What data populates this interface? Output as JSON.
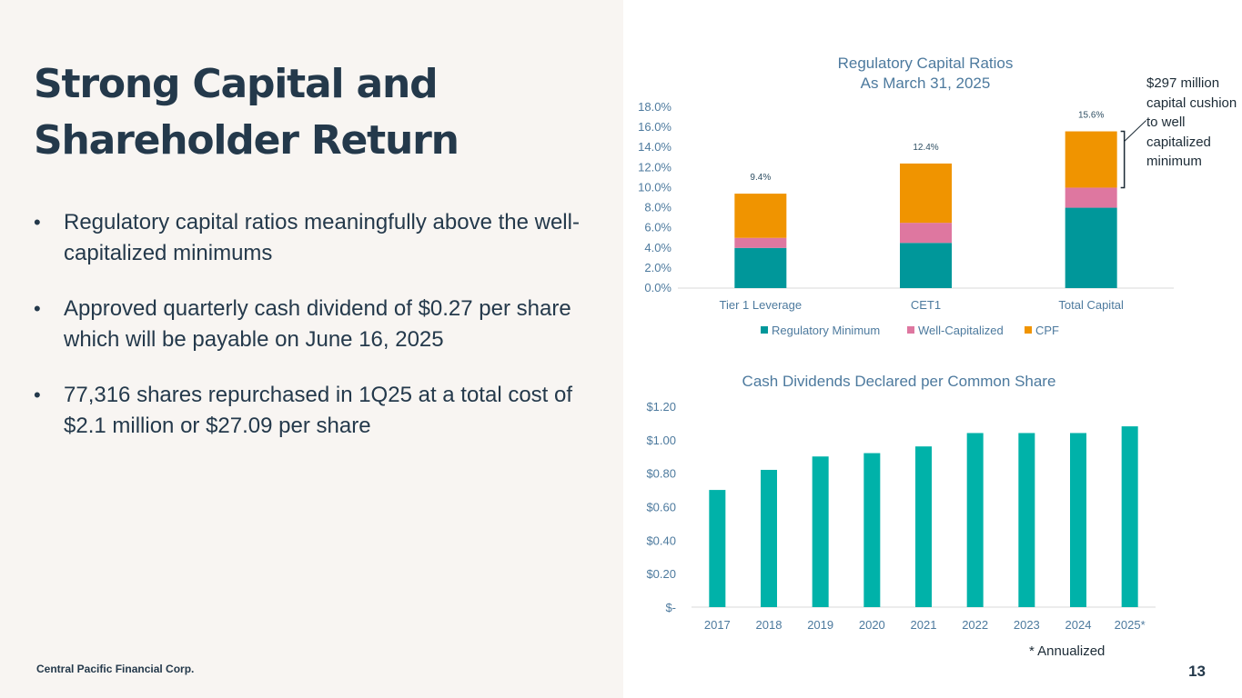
{
  "slide": {
    "title_lines": [
      "Strong Capital and",
      "Shareholder Return"
    ],
    "bullets": [
      "Regulatory capital ratios meaningfully above the well-capitalized minimums",
      "Approved quarterly cash dividend of $0.27 per share which will be payable on June 16, 2025",
      "77,316 shares repurchased in 1Q25 at a total cost of $2.1 million or $27.09 per share"
    ],
    "bullet_glyph": "•",
    "company": "Central Pacific Financial Corp.",
    "page_number": "13"
  },
  "colors": {
    "regulatory_minimum": "#00979a",
    "well_capitalized": "#de77a0",
    "cpf": "#f09400",
    "dividend_bar": "#00b2a9"
  },
  "chart_data": [
    {
      "type": "bar",
      "stacked": true,
      "title_lines": [
        "Regulatory Capital Ratios",
        "As March 31, 2025"
      ],
      "categories": [
        "Tier 1 Leverage",
        "CET1",
        "Total Capital"
      ],
      "series": [
        {
          "name": "Regulatory Minimum",
          "values": [
            4.0,
            4.5,
            8.0
          ]
        },
        {
          "name": "Well-Capitalized",
          "values": [
            1.0,
            2.0,
            2.0
          ]
        },
        {
          "name": "CPF",
          "values": [
            4.4,
            5.9,
            5.6
          ]
        }
      ],
      "totals": [
        "9.4%",
        "12.4%",
        "15.6%"
      ],
      "yticks": [
        "0.0%",
        "2.0%",
        "4.0%",
        "6.0%",
        "8.0%",
        "10.0%",
        "12.0%",
        "14.0%",
        "16.0%",
        "18.0%"
      ],
      "ylim": [
        0,
        18
      ],
      "legend": "bottom",
      "annotation": "$297 million capital cushion to well capitalized minimum"
    },
    {
      "type": "bar",
      "title": "Cash Dividends Declared per Common Share",
      "categories": [
        "2017",
        "2018",
        "2019",
        "2020",
        "2021",
        "2022",
        "2023",
        "2024",
        "2025*"
      ],
      "values": [
        0.7,
        0.82,
        0.9,
        0.92,
        0.96,
        1.04,
        1.04,
        1.04,
        1.08
      ],
      "yticks": [
        "$-",
        "$0.20",
        "$0.40",
        "$0.60",
        "$0.80",
        "$1.00",
        "$1.20"
      ],
      "ylim": [
        0,
        1.2
      ],
      "footnote": "* Annualized"
    }
  ]
}
